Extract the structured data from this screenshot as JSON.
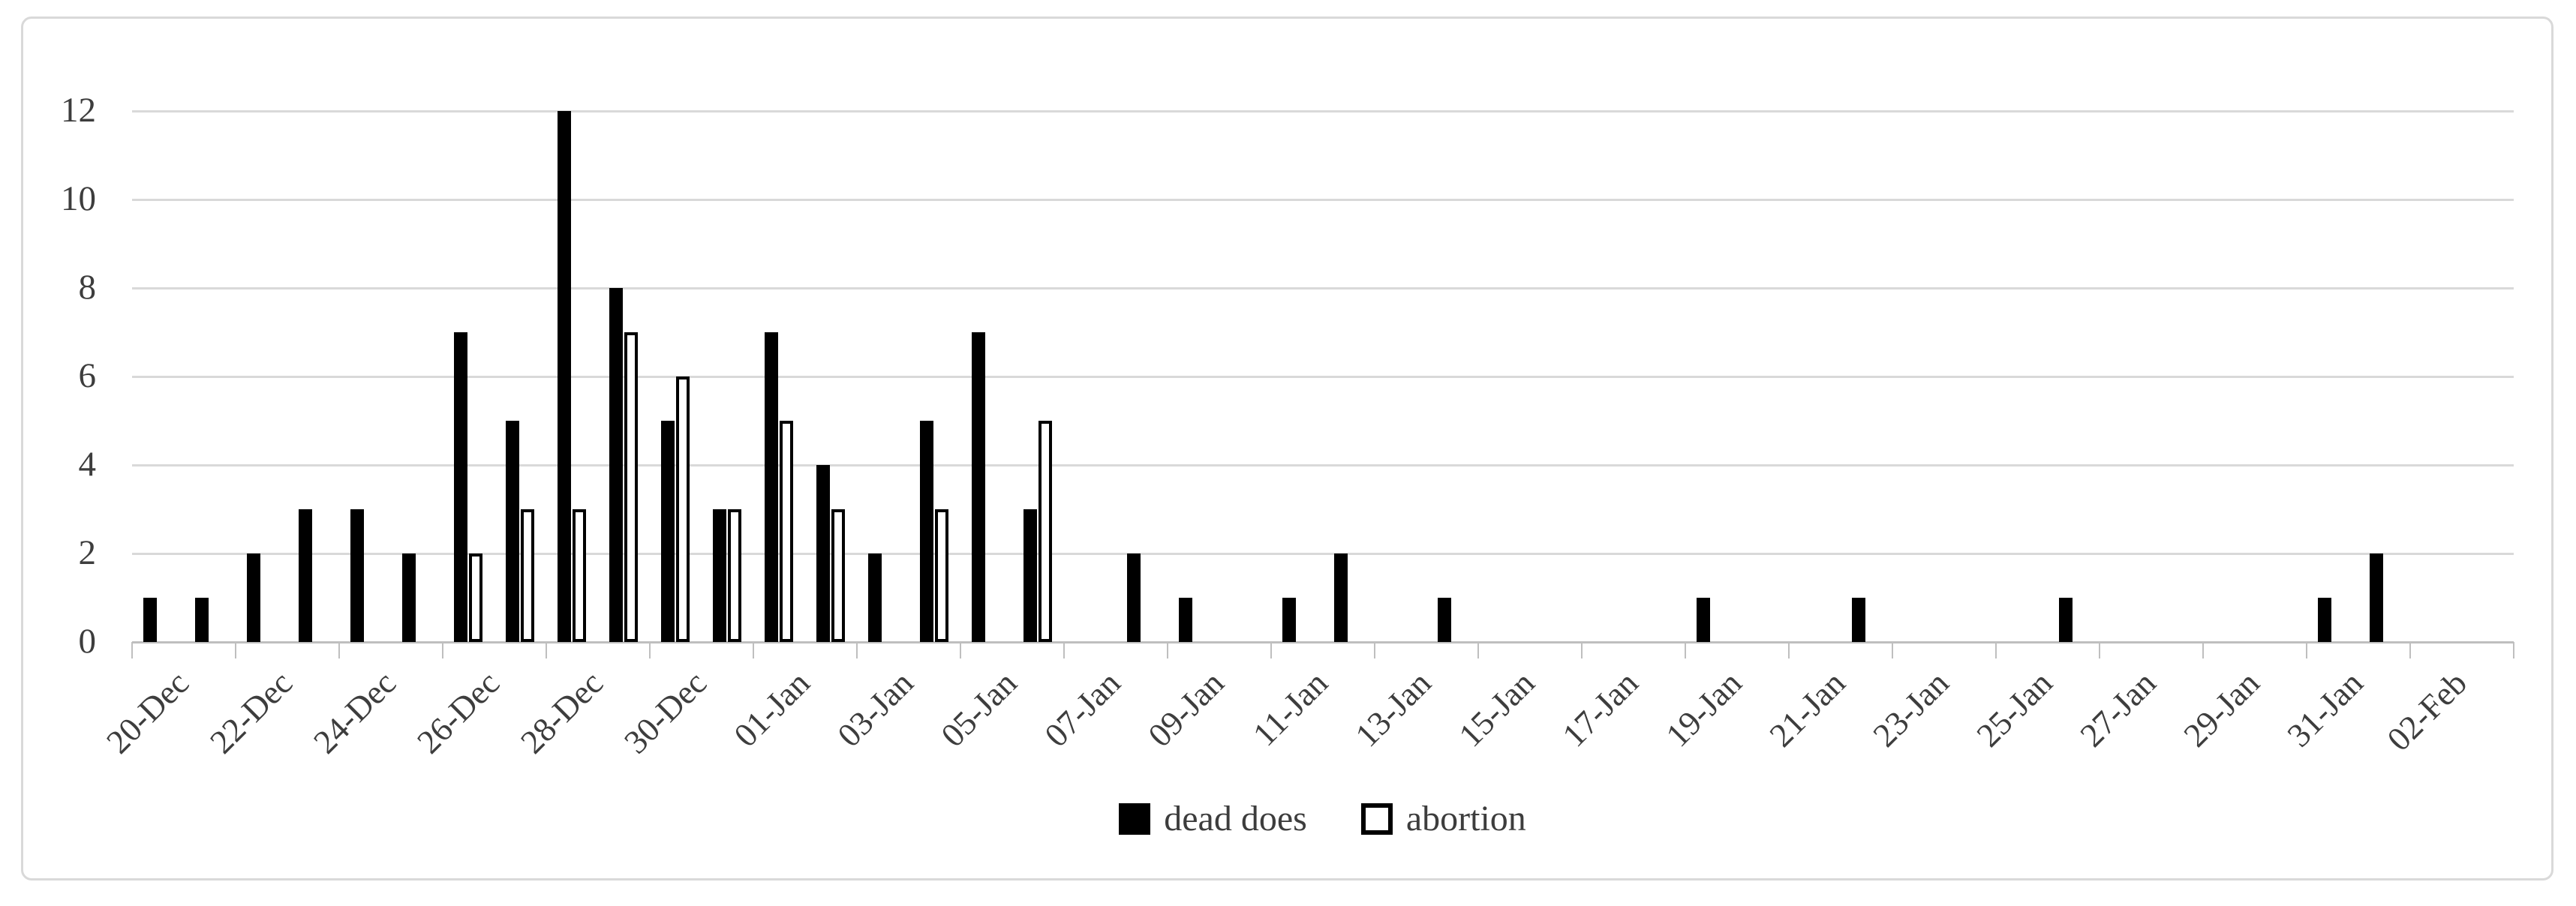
{
  "chart_data": {
    "type": "bar",
    "title": "",
    "xlabel": "",
    "ylabel": "",
    "categories": [
      "20-Dec",
      "21-Dec",
      "22-Dec",
      "23-Dec",
      "24-Dec",
      "25-Dec",
      "26-Dec",
      "27-Dec",
      "28-Dec",
      "29-Dec",
      "30-Dec",
      "31-Dec",
      "01-Jan",
      "02-Jan",
      "03-Jan",
      "04-Jan",
      "05-Jan",
      "06-Jan",
      "07-Jan",
      "08-Jan",
      "09-Jan",
      "10-Jan",
      "11-Jan",
      "12-Jan",
      "13-Jan",
      "14-Jan",
      "15-Jan",
      "16-Jan",
      "17-Jan",
      "18-Jan",
      "19-Jan",
      "20-Jan",
      "21-Jan",
      "22-Jan",
      "23-Jan",
      "24-Jan",
      "25-Jan",
      "26-Jan",
      "27-Jan",
      "28-Jan",
      "29-Jan",
      "30-Jan",
      "31-Jan",
      "01-Feb",
      "02-Feb"
    ],
    "series": [
      {
        "name": "dead does",
        "swatch": "filled",
        "fill": "#000000",
        "stroke": "#000000",
        "values": [
          1,
          1,
          2,
          3,
          3,
          2,
          7,
          5,
          12,
          8,
          5,
          3,
          7,
          4,
          2,
          5,
          7,
          3,
          0,
          2,
          1,
          0,
          1,
          2,
          0,
          1,
          0,
          0,
          0,
          0,
          1,
          0,
          0,
          1,
          0,
          0,
          0,
          1,
          0,
          0,
          0,
          0,
          1,
          2,
          0
        ]
      },
      {
        "name": "abortion",
        "swatch": "outlined",
        "fill": "#FFFFFF",
        "stroke": "#000000",
        "values": [
          0,
          0,
          0,
          0,
          0,
          0,
          2,
          3,
          3,
          7,
          6,
          3,
          5,
          3,
          0,
          3,
          0,
          5,
          0,
          0,
          0,
          0,
          0,
          0,
          0,
          0,
          0,
          0,
          0,
          0,
          0,
          0,
          0,
          0,
          0,
          0,
          0,
          0,
          0,
          0,
          0,
          0,
          0,
          0,
          0
        ]
      }
    ],
    "ylim": [
      0,
      12
    ],
    "y_ticks": [
      0,
      2,
      4,
      6,
      8,
      10,
      12
    ],
    "x_label_every": 2,
    "x_tick_every": 2,
    "grid": true,
    "legend_position": "bottom-center",
    "colors": {
      "bar_fill": "#000000",
      "bar_outline": "#000000",
      "gridline": "#D9D9D9",
      "axis": "#BFBFBF",
      "text": "#3D3D3D",
      "frame_border": "#D9D9D9",
      "background": "#FFFFFF"
    }
  },
  "legend": {
    "items": [
      {
        "label": "dead does",
        "swatch": "filled"
      },
      {
        "label": "abortion",
        "swatch": "outlined"
      }
    ]
  }
}
